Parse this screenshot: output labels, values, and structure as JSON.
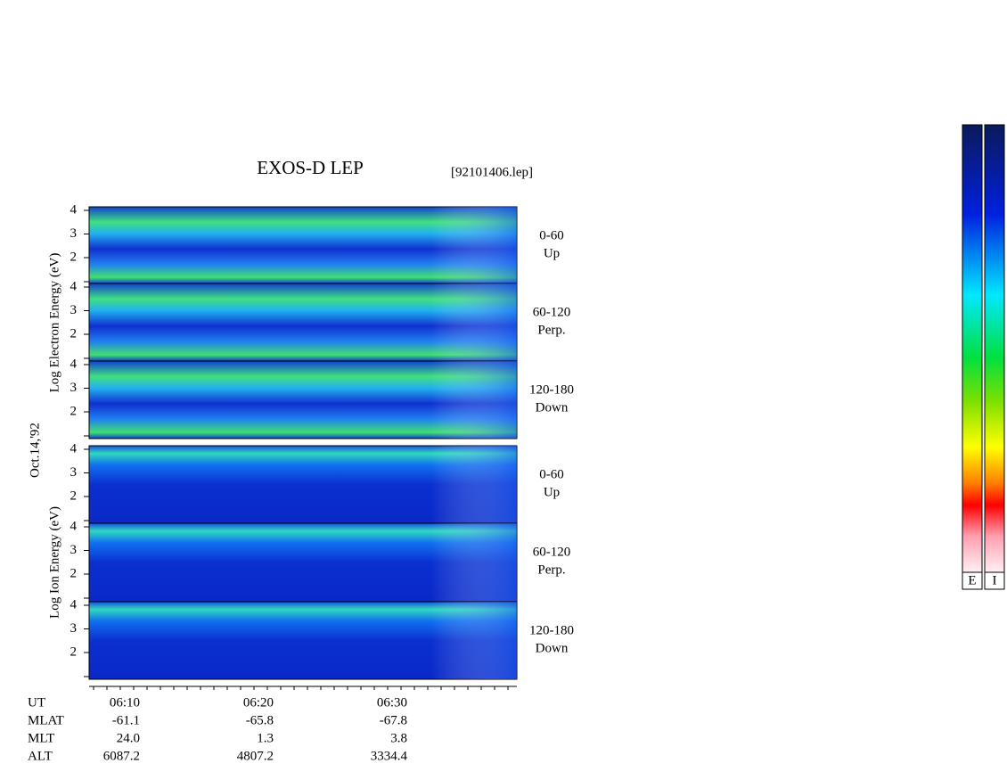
{
  "header": {
    "title": "EXOS-D LEP",
    "file": "[92101406.lep]"
  },
  "date": "Oct.14,'92",
  "groups": [
    {
      "axis_label": "Log  Electron  Energy (eV)",
      "panels": [
        {
          "angle": "0-60",
          "direction": "Up",
          "yticks": [
            2,
            3,
            4
          ]
        },
        {
          "angle": "60-120",
          "direction": "Perp.",
          "yticks": [
            2,
            3,
            4
          ]
        },
        {
          "angle": "120-180",
          "direction": "Down",
          "yticks": [
            2,
            3,
            4
          ]
        }
      ]
    },
    {
      "axis_label": "Log  Ion  Energy (eV)",
      "panels": [
        {
          "angle": "0-60",
          "direction": "Up",
          "yticks": [
            2,
            3,
            4
          ]
        },
        {
          "angle": "60-120",
          "direction": "Perp.",
          "yticks": [
            2,
            3,
            4
          ]
        },
        {
          "angle": "120-180",
          "direction": "Down",
          "yticks": [
            2,
            3,
            4
          ]
        }
      ]
    }
  ],
  "time_axis": {
    "rows": [
      {
        "label": "UT",
        "values": [
          "06:10",
          "06:20",
          "06:30"
        ]
      },
      {
        "label": "MLAT",
        "values": [
          "-61.1",
          "-65.8",
          "-67.8"
        ]
      },
      {
        "label": "MLT",
        "values": [
          "24.0",
          "1.3",
          "3.8"
        ]
      },
      {
        "label": "ALT",
        "values": [
          "6087.2",
          "4807.2",
          "3334.4"
        ]
      }
    ]
  },
  "colorbars": [
    "E",
    "I"
  ]
}
